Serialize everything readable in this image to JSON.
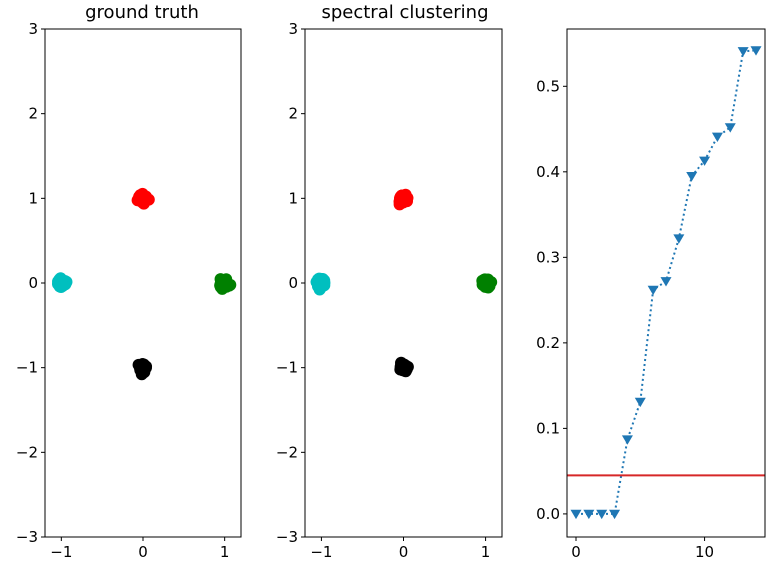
{
  "chart_data": [
    {
      "type": "scatter",
      "title": "ground truth",
      "xlabel": "",
      "ylabel": "",
      "xlim": [
        -1.2,
        1.2
      ],
      "ylim": [
        -3,
        3
      ],
      "xticks": [
        -1,
        0,
        1
      ],
      "yticks": [
        -3,
        -2,
        -1,
        0,
        1,
        2,
        3
      ],
      "xtick_labels": [
        "−1",
        "0",
        "1"
      ],
      "ytick_labels": [
        "−3",
        "−2",
        "−1",
        "0",
        "1",
        "2",
        "3"
      ],
      "grid": false,
      "series": [
        {
          "color": "#ff0000",
          "center": [
            0,
            1
          ]
        },
        {
          "color": "#00bfbf",
          "center": [
            -1,
            0
          ]
        },
        {
          "color": "#008000",
          "center": [
            1,
            0
          ]
        },
        {
          "color": "#000000",
          "center": [
            0,
            -1
          ]
        }
      ]
    },
    {
      "type": "scatter",
      "title": "spectral clustering",
      "xlabel": "",
      "ylabel": "",
      "xlim": [
        -1.2,
        1.2
      ],
      "ylim": [
        -3,
        3
      ],
      "xticks": [
        -1,
        0,
        1
      ],
      "yticks": [
        -3,
        -2,
        -1,
        0,
        1,
        2,
        3
      ],
      "xtick_labels": [
        "−1",
        "0",
        "1"
      ],
      "ytick_labels": [
        "−3",
        "−2",
        "−1",
        "0",
        "1",
        "2",
        "3"
      ],
      "grid": false,
      "series": [
        {
          "color": "#ff0000",
          "center": [
            0,
            1
          ]
        },
        {
          "color": "#00bfbf",
          "center": [
            -1,
            0
          ]
        },
        {
          "color": "#008000",
          "center": [
            1,
            0
          ]
        },
        {
          "color": "#000000",
          "center": [
            0,
            -1
          ]
        }
      ]
    },
    {
      "type": "line",
      "title": "",
      "xlabel": "",
      "ylabel": "",
      "xlim": [
        -0.7,
        14.7
      ],
      "ylim": [
        -0.027,
        0.567
      ],
      "xticks": [
        0,
        10
      ],
      "yticks": [
        0.0,
        0.1,
        0.2,
        0.3,
        0.4,
        0.5
      ],
      "xtick_labels": [
        "0",
        "10"
      ],
      "ytick_labels": [
        "0.0",
        "0.1",
        "0.2",
        "0.3",
        "0.4",
        "0.5"
      ],
      "grid": false,
      "series": [
        {
          "color": "#1f77b4",
          "linestyle": "dotted",
          "marker": "triangle-down",
          "x": [
            0,
            1,
            2,
            3,
            4,
            5,
            6,
            7,
            8,
            9,
            10,
            11,
            12,
            13,
            14
          ],
          "y": [
            0.0,
            0.0,
            0.0,
            0.0,
            0.087,
            0.131,
            0.262,
            0.272,
            0.322,
            0.395,
            0.413,
            0.441,
            0.452,
            0.541,
            0.542
          ]
        }
      ],
      "hline": {
        "y": 0.045,
        "color": "#d62728"
      }
    }
  ]
}
